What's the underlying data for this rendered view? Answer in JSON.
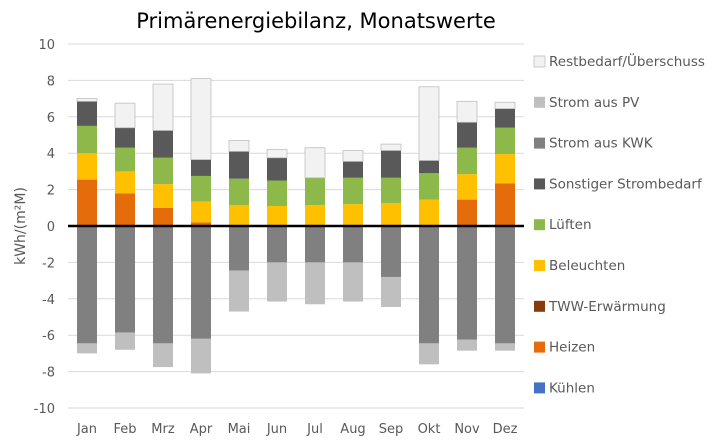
{
  "chart_data": {
    "type": "bar",
    "stacked": true,
    "title": "Primärenergiebilanz, Monatswerte",
    "xlabel": "",
    "ylabel": "kWh/(m²M)",
    "ylim": [
      -10,
      10
    ],
    "yticks": [
      10,
      8,
      6,
      4,
      2,
      0,
      -2,
      -4,
      -6,
      -8,
      -10
    ],
    "grid": true,
    "legend_position": "right",
    "categories": [
      "Jan",
      "Feb",
      "Mrz",
      "Apr",
      "Mai",
      "Jun",
      "Jul",
      "Aug",
      "Sep",
      "Okt",
      "Nov",
      "Dez"
    ],
    "positive_series": [
      {
        "name": "Kühlen",
        "color": "#4472C4",
        "values": [
          0,
          0,
          0,
          0,
          0,
          0,
          0,
          0,
          0,
          0,
          0,
          0
        ]
      },
      {
        "name": "Heizen",
        "color": "#E46C0A",
        "values": [
          2.55,
          1.8,
          1.0,
          0.2,
          0,
          0,
          0,
          0,
          0,
          0,
          1.45,
          2.35
        ]
      },
      {
        "name": "TWW-Erwärmung",
        "color": "#843C0C",
        "values": [
          0,
          0,
          0,
          0,
          0,
          0,
          0,
          0,
          0,
          0,
          0,
          0
        ]
      },
      {
        "name": "Beleuchten",
        "color": "#FFC000",
        "values": [
          1.45,
          1.2,
          1.3,
          1.15,
          1.15,
          1.1,
          1.15,
          1.2,
          1.25,
          1.45,
          1.4,
          1.6
        ]
      },
      {
        "name": "Lüften",
        "color": "#8DB94A",
        "values": [
          1.5,
          1.3,
          1.45,
          1.4,
          1.45,
          1.4,
          1.5,
          1.45,
          1.4,
          1.45,
          1.45,
          1.45
        ]
      },
      {
        "name": "Sonstiger Strombedarf",
        "color": "#595959",
        "values": [
          1.35,
          1.1,
          1.5,
          0.9,
          1.5,
          1.25,
          0,
          0.9,
          1.5,
          0.7,
          1.4,
          1.05
        ]
      },
      {
        "name": "Restbedarf/Überschuss",
        "color": "#F2F2F2",
        "values": [
          0.15,
          1.35,
          2.55,
          4.45,
          0.6,
          0.45,
          1.65,
          0.6,
          0.35,
          4.05,
          1.15,
          0.35
        ]
      }
    ],
    "negative_series": [
      {
        "name": "Strom aus KWK",
        "color": "#808080",
        "values": [
          -6.45,
          -5.85,
          -6.45,
          -6.2,
          -2.45,
          -2.0,
          -2.0,
          -2.0,
          -2.8,
          -6.45,
          -6.25,
          -6.45
        ]
      },
      {
        "name": "Strom aus PV",
        "color": "#BFBFBF",
        "values": [
          -0.55,
          -0.95,
          -1.3,
          -1.9,
          -2.25,
          -2.15,
          -2.3,
          -2.15,
          -1.65,
          -1.15,
          -0.6,
          -0.4
        ]
      }
    ],
    "legend_order": [
      "Restbedarf/Überschuss",
      "Strom aus PV",
      "Strom aus KWK",
      "Sonstiger Strombedarf",
      "Lüften",
      "Beleuchten",
      "TWW-Erwärmung",
      "Heizen",
      "Kühlen"
    ]
  }
}
